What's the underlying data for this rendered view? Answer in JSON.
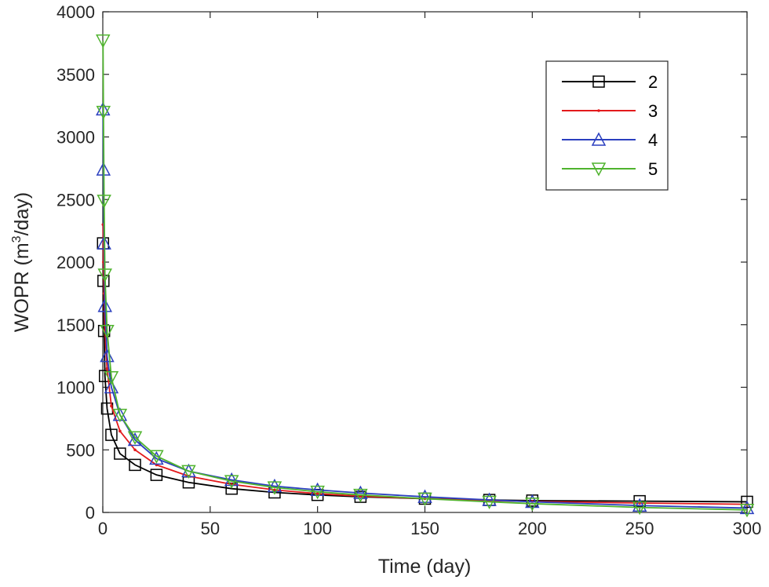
{
  "chart_data": {
    "type": "line",
    "xlabel": "Time (day)",
    "ylabel_main": "WOPR (m",
    "ylabel_sup": "3",
    "ylabel_tail": "/day)",
    "xlim": [
      0,
      300
    ],
    "ylim": [
      0,
      4000
    ],
    "xticks": [
      "0",
      "50",
      "100",
      "150",
      "200",
      "250",
      "300"
    ],
    "yticks": [
      "0",
      "500",
      "1000",
      "1500",
      "2000",
      "2500",
      "3000",
      "3500",
      "4000"
    ],
    "grid": false,
    "legend_position": "top-right",
    "series": [
      {
        "name": "2",
        "color": "#000000",
        "marker": "square",
        "x": [
          0.1,
          0.3,
          0.6,
          1,
          2,
          4,
          8,
          15,
          25,
          40,
          60,
          80,
          100,
          120,
          150,
          180,
          200,
          250,
          300
        ],
        "y": [
          2150,
          1850,
          1450,
          1090,
          830,
          620,
          470,
          380,
          300,
          240,
          190,
          160,
          140,
          125,
          110,
          100,
          95,
          90,
          85
        ]
      },
      {
        "name": "3",
        "color": "#e31a1c",
        "marker": "dot",
        "x": [
          0.1,
          0.3,
          0.6,
          1,
          2,
          4,
          8,
          15,
          25,
          40,
          60,
          80,
          100,
          120,
          150,
          180,
          200,
          250,
          300
        ],
        "y": [
          2300,
          2000,
          1750,
          1450,
          1150,
          850,
          650,
          500,
          380,
          290,
          225,
          180,
          150,
          130,
          110,
          95,
          88,
          75,
          65
        ]
      },
      {
        "name": "4",
        "color": "#2b3fbf",
        "marker": "triangle-up",
        "x": [
          0.1,
          0.3,
          0.6,
          1,
          2,
          4,
          8,
          15,
          25,
          40,
          60,
          80,
          100,
          120,
          150,
          180,
          200,
          250,
          300
        ],
        "y": [
          3220,
          2740,
          2150,
          1650,
          1250,
          1000,
          780,
          580,
          430,
          330,
          260,
          210,
          180,
          155,
          125,
          100,
          85,
          55,
          35
        ]
      },
      {
        "name": "5",
        "color": "#4fb32e",
        "marker": "triangle-down",
        "x": [
          0.1,
          0.3,
          0.6,
          1,
          2,
          4,
          8,
          15,
          25,
          40,
          60,
          80,
          100,
          120,
          150,
          180,
          200,
          250,
          300
        ],
        "y": [
          3770,
          3200,
          2490,
          1900,
          1450,
          1080,
          780,
          600,
          450,
          330,
          250,
          200,
          165,
          140,
          110,
          85,
          70,
          40,
          20
        ]
      }
    ]
  }
}
